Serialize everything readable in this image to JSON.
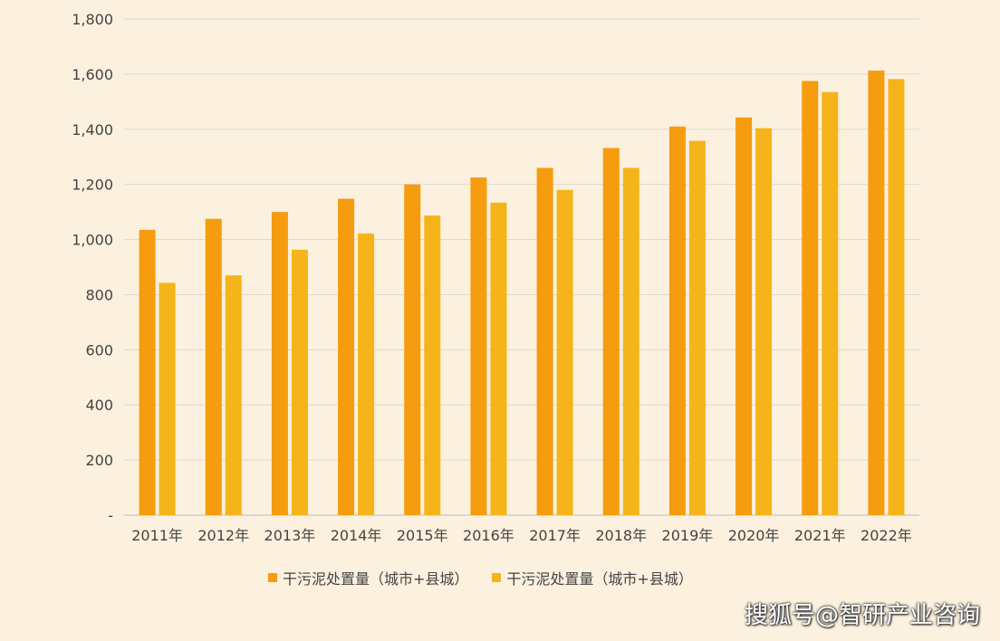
{
  "chart_data": {
    "type": "bar",
    "categories": [
      "2011年",
      "2012年",
      "2013年",
      "2014年",
      "2015年",
      "2016年",
      "2017年",
      "2018年",
      "2019年",
      "2020年",
      "2021年",
      "2022年"
    ],
    "series": [
      {
        "name": "干污泥处置量（城市+县城）",
        "color": "#f59c0f",
        "values": [
          1035,
          1075,
          1100,
          1148,
          1200,
          1225,
          1260,
          1332,
          1410,
          1443,
          1575,
          1613
        ]
      },
      {
        "name": "干污泥处置量（城市+县城）",
        "color": "#f5b41a",
        "values": [
          843,
          870,
          963,
          1022,
          1087,
          1134,
          1180,
          1260,
          1358,
          1404,
          1535,
          1582
        ]
      }
    ],
    "yticks": [
      "-",
      "200",
      "400",
      "600",
      "800",
      "1,000",
      "1,200",
      "1,400",
      "1,600",
      "1,800"
    ],
    "ylim": [
      0,
      1800
    ],
    "grid": true,
    "legend_position": "bottom"
  },
  "watermark": {
    "text": "搜狐号@智研产业咨询"
  }
}
